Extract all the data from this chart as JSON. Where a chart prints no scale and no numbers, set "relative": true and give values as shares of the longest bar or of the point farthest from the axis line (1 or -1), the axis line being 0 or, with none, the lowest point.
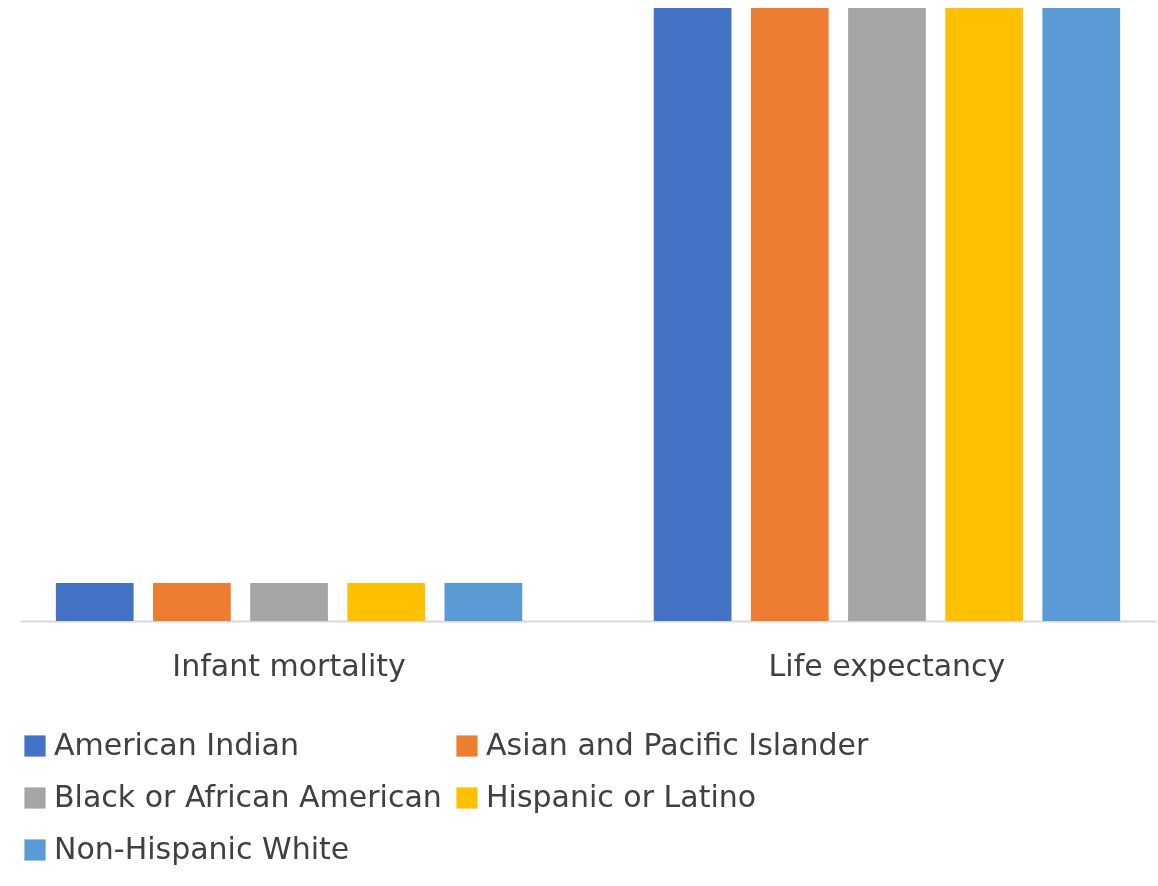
{
  "chart_data": {
    "type": "bar",
    "relative": true,
    "categories": [
      "Infant mortality",
      "Life expectancy"
    ],
    "series": [
      {
        "name": "American Indian",
        "color": "#4472c4",
        "values": [
          0.062,
          1
        ]
      },
      {
        "name": "Asian and Pacific Islander",
        "color": "#ed7d31",
        "values": [
          0.062,
          1
        ]
      },
      {
        "name": "Black or African American",
        "color": "#a5a5a5",
        "values": [
          0.062,
          1
        ]
      },
      {
        "name": "Hispanic or Latino",
        "color": "#ffc000",
        "values": [
          0.062,
          1
        ]
      },
      {
        "name": "Non-Hispanic White",
        "color": "#5b9bd5",
        "values": [
          0.062,
          1
        ]
      }
    ],
    "legend": "bottom",
    "grid": false
  }
}
